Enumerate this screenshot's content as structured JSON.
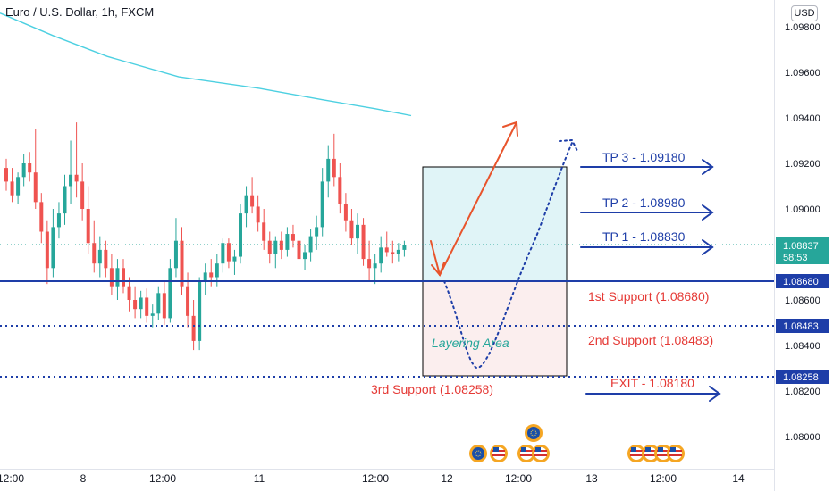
{
  "header": {
    "title": "Euro / U.S. Dollar, 1h, FXCM",
    "currency": "USD"
  },
  "price_axis": {
    "ticks": [
      "1.09800",
      "1.09600",
      "1.09400",
      "1.09200",
      "1.09000",
      "1.08800",
      "1.08600",
      "1.08400",
      "1.08200",
      "1.08000"
    ],
    "current_price": "1.08837",
    "countdown": "58:53",
    "level_badges": [
      "1.08680",
      "1.08483",
      "1.08258"
    ]
  },
  "time_axis": {
    "ticks": [
      "12:00",
      "8",
      "12:00",
      "11",
      "12:00",
      "12",
      "12:00",
      "13",
      "12:00",
      "14",
      "12:00"
    ]
  },
  "annotations": {
    "tp3": "TP 3 - 1.09180",
    "tp2": "TP 2 - 1.08980",
    "tp1": "TP 1 - 1.08830",
    "support1": "1st Support (1.08680)",
    "support2": "2nd Support (1.08483)",
    "support3": "3rd Support (1.08258)",
    "exit": "EXIT - 1.08180",
    "layering": "Layering Area"
  },
  "colors": {
    "up": "#26a69a",
    "down": "#ef5350",
    "ma": "#4dd0e1",
    "level": "#1e3ea8",
    "target": "#1e3ea8",
    "support_text": "#e53935",
    "arrow_red": "#e8542c",
    "zone_top": "#e0f4f7",
    "zone_bottom": "#fbeeee"
  },
  "chart_data": {
    "type": "candlestick",
    "symbol": "Euro / U.S. Dollar",
    "timeframe": "1h",
    "source": "FXCM",
    "ylim": [
      1.079,
      1.0988
    ],
    "current_price": 1.08837,
    "levels": [
      {
        "label": "1st Support (1.08680)",
        "value": 1.0868,
        "style": "solid"
      },
      {
        "label": "2nd Support (1.08483)",
        "value": 1.08483,
        "style": "dotted"
      },
      {
        "label": "3rd Support (1.08258)",
        "value": 1.08258,
        "style": "dotted"
      }
    ],
    "targets": [
      {
        "label": "TP 3 - 1.09180",
        "value": 1.0918
      },
      {
        "label": "TP 2 - 1.08980",
        "value": 1.0898
      },
      {
        "label": "TP 1 - 1.08830",
        "value": 1.0883
      },
      {
        "label": "EXIT - 1.08180",
        "value": 1.0818
      }
    ],
    "moving_average": [
      [
        0,
        1.0986
      ],
      [
        60,
        1.0976
      ],
      [
        120,
        1.0967
      ],
      [
        200,
        1.0958
      ],
      [
        290,
        1.0953
      ],
      [
        360,
        1.0948
      ],
      [
        420,
        1.0944
      ],
      [
        460,
        1.0941
      ]
    ],
    "candles": [
      {
        "o": 1.0918,
        "h": 1.0922,
        "l": 1.0908,
        "c": 1.0912
      },
      {
        "o": 1.0912,
        "h": 1.0918,
        "l": 1.0903,
        "c": 1.0906
      },
      {
        "o": 1.0906,
        "h": 1.0916,
        "l": 1.0902,
        "c": 1.0914
      },
      {
        "o": 1.0914,
        "h": 1.0924,
        "l": 1.091,
        "c": 1.092
      },
      {
        "o": 1.092,
        "h": 1.0925,
        "l": 1.0912,
        "c": 1.0916
      },
      {
        "o": 1.0916,
        "h": 1.0935,
        "l": 1.09,
        "c": 1.0903
      },
      {
        "o": 1.0903,
        "h": 1.0907,
        "l": 1.0885,
        "c": 1.089
      },
      {
        "o": 1.089,
        "h": 1.0895,
        "l": 1.0867,
        "c": 1.0874
      },
      {
        "o": 1.0874,
        "h": 1.09,
        "l": 1.087,
        "c": 1.0892
      },
      {
        "o": 1.0892,
        "h": 1.0903,
        "l": 1.0887,
        "c": 1.0898
      },
      {
        "o": 1.0898,
        "h": 1.0915,
        "l": 1.0893,
        "c": 1.091
      },
      {
        "o": 1.091,
        "h": 1.093,
        "l": 1.0902,
        "c": 1.0915
      },
      {
        "o": 1.0915,
        "h": 1.0938,
        "l": 1.0905,
        "c": 1.0912
      },
      {
        "o": 1.0912,
        "h": 1.092,
        "l": 1.0895,
        "c": 1.09
      },
      {
        "o": 1.09,
        "h": 1.091,
        "l": 1.088,
        "c": 1.0885
      },
      {
        "o": 1.0885,
        "h": 1.0895,
        "l": 1.0872,
        "c": 1.0876
      },
      {
        "o": 1.0876,
        "h": 1.0888,
        "l": 1.087,
        "c": 1.0882
      },
      {
        "o": 1.0882,
        "h": 1.0886,
        "l": 1.087,
        "c": 1.0874
      },
      {
        "o": 1.0874,
        "h": 1.088,
        "l": 1.0862,
        "c": 1.0866
      },
      {
        "o": 1.0866,
        "h": 1.0878,
        "l": 1.086,
        "c": 1.0874
      },
      {
        "o": 1.0874,
        "h": 1.0878,
        "l": 1.0863,
        "c": 1.0866
      },
      {
        "o": 1.0866,
        "h": 1.087,
        "l": 1.0855,
        "c": 1.086
      },
      {
        "o": 1.086,
        "h": 1.0866,
        "l": 1.0852,
        "c": 1.0856
      },
      {
        "o": 1.0856,
        "h": 1.0864,
        "l": 1.0852,
        "c": 1.0861
      },
      {
        "o": 1.0861,
        "h": 1.0865,
        "l": 1.085,
        "c": 1.0853
      },
      {
        "o": 1.0853,
        "h": 1.0858,
        "l": 1.0848,
        "c": 1.0854
      },
      {
        "o": 1.0854,
        "h": 1.0866,
        "l": 1.0851,
        "c": 1.0863
      },
      {
        "o": 1.0863,
        "h": 1.0868,
        "l": 1.0849,
        "c": 1.0852
      },
      {
        "o": 1.0852,
        "h": 1.0878,
        "l": 1.085,
        "c": 1.0874
      },
      {
        "o": 1.0874,
        "h": 1.0896,
        "l": 1.087,
        "c": 1.0886
      },
      {
        "o": 1.0886,
        "h": 1.0892,
        "l": 1.0862,
        "c": 1.0866
      },
      {
        "o": 1.0866,
        "h": 1.0872,
        "l": 1.0848,
        "c": 1.0853
      },
      {
        "o": 1.0853,
        "h": 1.086,
        "l": 1.0838,
        "c": 1.0842
      },
      {
        "o": 1.0842,
        "h": 1.087,
        "l": 1.0838,
        "c": 1.0868
      },
      {
        "o": 1.0868,
        "h": 1.0876,
        "l": 1.0862,
        "c": 1.0872
      },
      {
        "o": 1.0872,
        "h": 1.0878,
        "l": 1.0866,
        "c": 1.087
      },
      {
        "o": 1.087,
        "h": 1.088,
        "l": 1.0866,
        "c": 1.0876
      },
      {
        "o": 1.0876,
        "h": 1.0887,
        "l": 1.0872,
        "c": 1.0885
      },
      {
        "o": 1.0885,
        "h": 1.0887,
        "l": 1.0874,
        "c": 1.0877
      },
      {
        "o": 1.0877,
        "h": 1.0882,
        "l": 1.0871,
        "c": 1.0879
      },
      {
        "o": 1.0879,
        "h": 1.0902,
        "l": 1.0876,
        "c": 1.0898
      },
      {
        "o": 1.0898,
        "h": 1.091,
        "l": 1.0892,
        "c": 1.0906
      },
      {
        "o": 1.0906,
        "h": 1.0914,
        "l": 1.0898,
        "c": 1.0901
      },
      {
        "o": 1.0901,
        "h": 1.0906,
        "l": 1.089,
        "c": 1.0894
      },
      {
        "o": 1.0894,
        "h": 1.09,
        "l": 1.0882,
        "c": 1.0886
      },
      {
        "o": 1.0886,
        "h": 1.089,
        "l": 1.0876,
        "c": 1.088
      },
      {
        "o": 1.088,
        "h": 1.0888,
        "l": 1.0874,
        "c": 1.0886
      },
      {
        "o": 1.0886,
        "h": 1.089,
        "l": 1.0878,
        "c": 1.0882
      },
      {
        "o": 1.0882,
        "h": 1.0892,
        "l": 1.0879,
        "c": 1.0889
      },
      {
        "o": 1.0889,
        "h": 1.0893,
        "l": 1.0883,
        "c": 1.0886
      },
      {
        "o": 1.0886,
        "h": 1.089,
        "l": 1.0874,
        "c": 1.0878
      },
      {
        "o": 1.0878,
        "h": 1.0884,
        "l": 1.0873,
        "c": 1.0881
      },
      {
        "o": 1.0881,
        "h": 1.0891,
        "l": 1.0877,
        "c": 1.0888
      },
      {
        "o": 1.0888,
        "h": 1.0897,
        "l": 1.0882,
        "c": 1.0892
      },
      {
        "o": 1.0892,
        "h": 1.0918,
        "l": 1.0888,
        "c": 1.0912
      },
      {
        "o": 1.0912,
        "h": 1.0928,
        "l": 1.0905,
        "c": 1.0922
      },
      {
        "o": 1.0922,
        "h": 1.0933,
        "l": 1.091,
        "c": 1.0914
      },
      {
        "o": 1.0914,
        "h": 1.092,
        "l": 1.0898,
        "c": 1.0902
      },
      {
        "o": 1.0902,
        "h": 1.0907,
        "l": 1.089,
        "c": 1.0895
      },
      {
        "o": 1.0895,
        "h": 1.09,
        "l": 1.0884,
        "c": 1.0887
      },
      {
        "o": 1.0887,
        "h": 1.0898,
        "l": 1.088,
        "c": 1.0893
      },
      {
        "o": 1.0893,
        "h": 1.0896,
        "l": 1.0875,
        "c": 1.0878
      },
      {
        "o": 1.0878,
        "h": 1.0886,
        "l": 1.0868,
        "c": 1.0874
      },
      {
        "o": 1.0874,
        "h": 1.088,
        "l": 1.0867,
        "c": 1.0876
      },
      {
        "o": 1.0876,
        "h": 1.0888,
        "l": 1.0872,
        "c": 1.0883
      },
      {
        "o": 1.0883,
        "h": 1.089,
        "l": 1.0879,
        "c": 1.0881
      },
      {
        "o": 1.0881,
        "h": 1.0886,
        "l": 1.0876,
        "c": 1.088
      },
      {
        "o": 1.088,
        "h": 1.0885,
        "l": 1.0877,
        "c": 1.0882
      },
      {
        "o": 1.0882,
        "h": 1.0886,
        "l": 1.0879,
        "c": 1.0884
      }
    ]
  }
}
